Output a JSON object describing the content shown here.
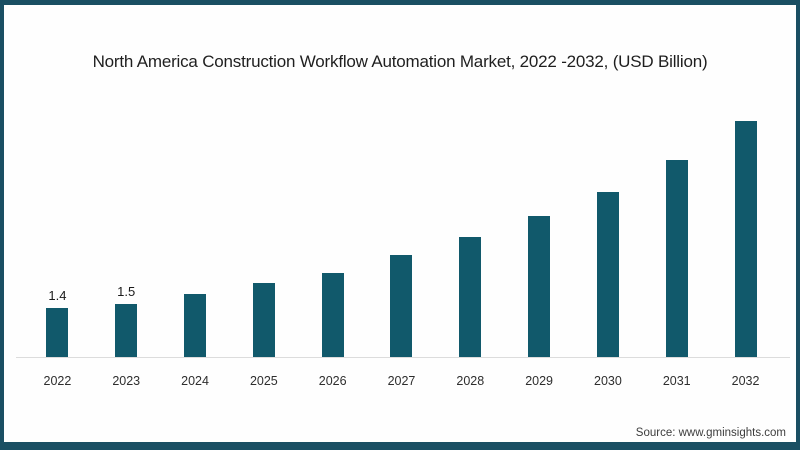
{
  "frame": {
    "border_color": "#1a4f63",
    "background_color": "#fefefe"
  },
  "title": "North America Construction Workflow Automation Market, 2022 -2032, (USD Billion)",
  "source": "Source: www.gminsights.com",
  "chart_data": {
    "type": "bar",
    "title": "North America Construction Workflow Automation Market, 2022 -2032, (USD Billion)",
    "categories": [
      "2022",
      "2023",
      "2024",
      "2025",
      "2026",
      "2027",
      "2028",
      "2029",
      "2030",
      "2031",
      "2032"
    ],
    "values": [
      1.4,
      1.5,
      1.8,
      2.1,
      2.4,
      2.9,
      3.4,
      4.0,
      4.7,
      5.6,
      6.7
    ],
    "data_labels": [
      "1.4",
      "1.5",
      "",
      "",
      "",
      "",
      "",
      "",
      "",
      "",
      ""
    ],
    "xlabel": "",
    "ylabel": "",
    "ylim": [
      0,
      7
    ],
    "grid": false,
    "legend": false,
    "y_axis_visible": false,
    "bar_color": "#11596b",
    "axis_line_color": "#dcdcdc"
  }
}
